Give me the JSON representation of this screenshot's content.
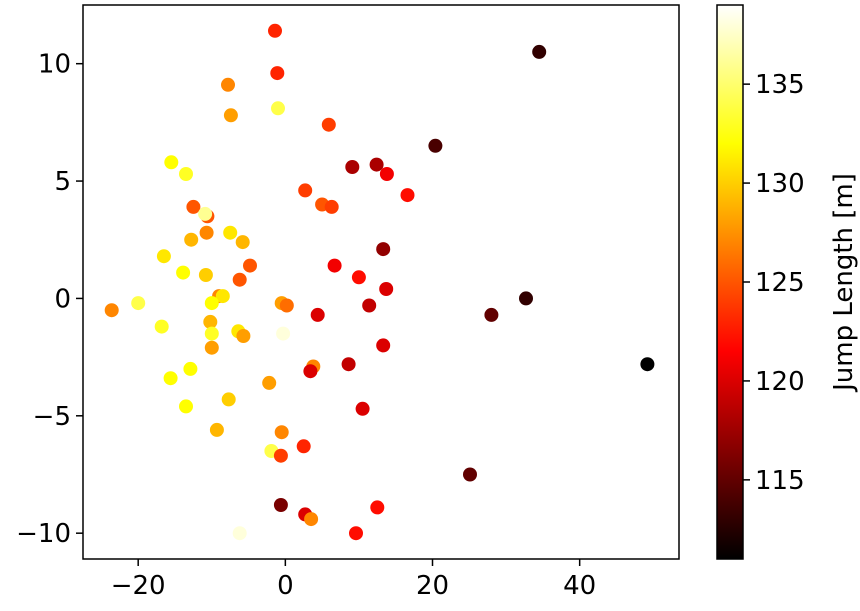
{
  "chart_data": {
    "type": "scatter",
    "title": "",
    "xlabel": "",
    "ylabel": "",
    "xlim": [
      -27.5,
      53.5
    ],
    "ylim": [
      -11.1,
      12.5
    ],
    "x_ticks": [
      -20,
      0,
      20,
      40
    ],
    "x_tick_labels": [
      "−20",
      "0",
      "20",
      "40"
    ],
    "y_ticks": [
      -10,
      -5,
      0,
      5,
      10
    ],
    "y_tick_labels": [
      "−10",
      "−5",
      "0",
      "5",
      "10"
    ],
    "grid": false,
    "colorbar": {
      "label": "Jump Length [m]",
      "colormap": "hot",
      "range": [
        111,
        139
      ],
      "ticks": [
        115,
        120,
        125,
        130,
        135
      ],
      "tick_labels": [
        "115",
        "120",
        "125",
        "130",
        "135"
      ]
    },
    "points": [
      {
        "x": -1.4,
        "y": 11.4,
        "c": 123
      },
      {
        "x": -1.1,
        "y": 9.6,
        "c": 123
      },
      {
        "x": -7.8,
        "y": 9.1,
        "c": 127
      },
      {
        "x": -1.0,
        "y": 8.1,
        "c": 134
      },
      {
        "x": -7.4,
        "y": 7.8,
        "c": 128
      },
      {
        "x": 5.9,
        "y": 7.4,
        "c": 124
      },
      {
        "x": 34.5,
        "y": 10.5,
        "c": 113
      },
      {
        "x": 20.4,
        "y": 6.5,
        "c": 114
      },
      {
        "x": 9.1,
        "y": 5.6,
        "c": 118
      },
      {
        "x": 12.4,
        "y": 5.7,
        "c": 118
      },
      {
        "x": 13.8,
        "y": 5.3,
        "c": 121
      },
      {
        "x": 16.6,
        "y": 4.4,
        "c": 122
      },
      {
        "x": -15.5,
        "y": 5.8,
        "c": 132
      },
      {
        "x": -13.5,
        "y": 5.3,
        "c": 133
      },
      {
        "x": 2.7,
        "y": 4.6,
        "c": 124
      },
      {
        "x": 5.0,
        "y": 4.0,
        "c": 125
      },
      {
        "x": 6.3,
        "y": 3.9,
        "c": 124
      },
      {
        "x": -12.5,
        "y": 3.9,
        "c": 125
      },
      {
        "x": -10.6,
        "y": 3.5,
        "c": 125
      },
      {
        "x": -10.9,
        "y": 3.6,
        "c": 136
      },
      {
        "x": -10.7,
        "y": 2.8,
        "c": 127
      },
      {
        "x": -7.5,
        "y": 2.8,
        "c": 131
      },
      {
        "x": -12.8,
        "y": 2.5,
        "c": 129
      },
      {
        "x": -5.8,
        "y": 2.4,
        "c": 129
      },
      {
        "x": 13.3,
        "y": 2.1,
        "c": 117
      },
      {
        "x": -16.5,
        "y": 1.8,
        "c": 131
      },
      {
        "x": -4.8,
        "y": 1.4,
        "c": 125
      },
      {
        "x": 6.7,
        "y": 1.4,
        "c": 121
      },
      {
        "x": -13.9,
        "y": 1.1,
        "c": 132
      },
      {
        "x": -10.8,
        "y": 1.0,
        "c": 130
      },
      {
        "x": -6.2,
        "y": 0.8,
        "c": 125
      },
      {
        "x": 10.0,
        "y": 0.9,
        "c": 122
      },
      {
        "x": 13.7,
        "y": 0.4,
        "c": 120
      },
      {
        "x": -9.0,
        "y": 0.1,
        "c": 127
      },
      {
        "x": -8.5,
        "y": 0.1,
        "c": 131
      },
      {
        "x": -10.0,
        "y": -0.2,
        "c": 132
      },
      {
        "x": -20.0,
        "y": -0.2,
        "c": 134
      },
      {
        "x": -0.5,
        "y": -0.2,
        "c": 128
      },
      {
        "x": 0.2,
        "y": -0.3,
        "c": 126
      },
      {
        "x": 11.4,
        "y": -0.3,
        "c": 119
      },
      {
        "x": 32.7,
        "y": 0.0,
        "c": 113
      },
      {
        "x": -23.6,
        "y": -0.5,
        "c": 127
      },
      {
        "x": 4.4,
        "y": -0.7,
        "c": 120
      },
      {
        "x": 28.0,
        "y": -0.7,
        "c": 115
      },
      {
        "x": -10.2,
        "y": -1.0,
        "c": 129
      },
      {
        "x": -16.8,
        "y": -1.2,
        "c": 133
      },
      {
        "x": -6.4,
        "y": -1.4,
        "c": 131
      },
      {
        "x": -10.0,
        "y": -1.5,
        "c": 133
      },
      {
        "x": -0.3,
        "y": -1.5,
        "c": 138
      },
      {
        "x": -5.7,
        "y": -1.6,
        "c": 128
      },
      {
        "x": -10.0,
        "y": -2.1,
        "c": 128
      },
      {
        "x": 13.3,
        "y": -2.0,
        "c": 120
      },
      {
        "x": 8.6,
        "y": -2.8,
        "c": 119
      },
      {
        "x": 3.8,
        "y": -2.9,
        "c": 127
      },
      {
        "x": 3.4,
        "y": -3.1,
        "c": 120
      },
      {
        "x": -12.9,
        "y": -3.0,
        "c": 132
      },
      {
        "x": -15.6,
        "y": -3.4,
        "c": 132
      },
      {
        "x": -2.2,
        "y": -3.6,
        "c": 128
      },
      {
        "x": -13.5,
        "y": -4.6,
        "c": 132
      },
      {
        "x": -7.7,
        "y": -4.3,
        "c": 130
      },
      {
        "x": 10.5,
        "y": -4.7,
        "c": 120
      },
      {
        "x": -9.3,
        "y": -5.6,
        "c": 129
      },
      {
        "x": -0.5,
        "y": -5.7,
        "c": 127
      },
      {
        "x": 2.5,
        "y": -6.3,
        "c": 123
      },
      {
        "x": 25.1,
        "y": -7.5,
        "c": 115
      },
      {
        "x": -1.9,
        "y": -6.5,
        "c": 134
      },
      {
        "x": -0.6,
        "y": -6.7,
        "c": 124
      },
      {
        "x": -0.6,
        "y": -8.8,
        "c": 116
      },
      {
        "x": 2.7,
        "y": -9.2,
        "c": 120
      },
      {
        "x": 3.5,
        "y": -9.4,
        "c": 127
      },
      {
        "x": 12.5,
        "y": -8.9,
        "c": 122
      },
      {
        "x": -6.2,
        "y": -10.0,
        "c": 138
      },
      {
        "x": 9.6,
        "y": -10.0,
        "c": 122
      },
      {
        "x": 49.2,
        "y": -2.8,
        "c": 111
      }
    ]
  }
}
